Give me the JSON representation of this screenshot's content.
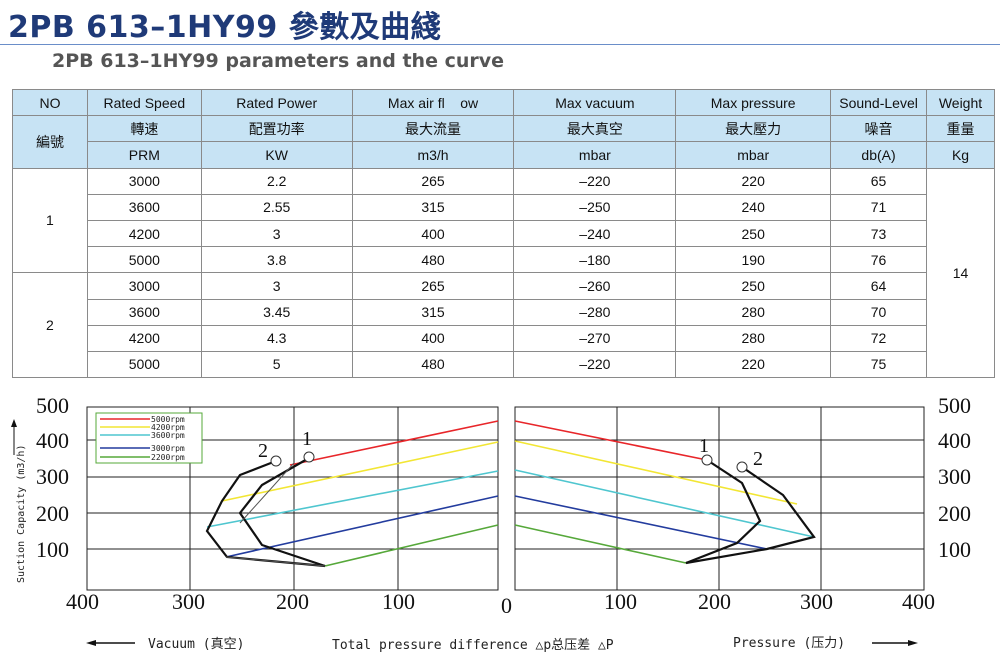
{
  "title": "2PB 613–1HY99 參數及曲綫",
  "subtitle": "2PB 613–1HY99 parameters and the curve",
  "table": {
    "header_en": [
      "NO",
      "Rated Speed",
      "Rated Power",
      "Max air fl    ow",
      "Max vacuum",
      "Max pressure",
      "Sound-Level",
      "Weight"
    ],
    "header_cn": [
      "編號",
      "轉速",
      "配置功率",
      "最大流量",
      "最大真空",
      "最大壓力",
      "噪音",
      "重量"
    ],
    "units": [
      "PRM",
      "KW",
      "m3/h",
      "mbar",
      "mbar",
      "db(A)",
      "Kg"
    ],
    "weight": "14",
    "groups": [
      {
        "no": "1",
        "rows": [
          [
            "3000",
            "2.2",
            "265",
            "–220",
            "220",
            "65"
          ],
          [
            "3600",
            "2.55",
            "315",
            "–250",
            "240",
            "71"
          ],
          [
            "4200",
            "3",
            "400",
            "–240",
            "250",
            "73"
          ],
          [
            "5000",
            "3.8",
            "480",
            "–180",
            "190",
            "76"
          ]
        ]
      },
      {
        "no": "2",
        "rows": [
          [
            "3000",
            "3",
            "265",
            "–260",
            "250",
            "64"
          ],
          [
            "3600",
            "3.45",
            "315",
            "–280",
            "280",
            "70"
          ],
          [
            "4200",
            "4.3",
            "400",
            "–270",
            "280",
            "72"
          ],
          [
            "5000",
            "5",
            "480",
            "–220",
            "220",
            "75"
          ]
        ]
      }
    ]
  },
  "chart": {
    "y_ticks": [
      "500",
      "400",
      "300",
      "200",
      "100"
    ],
    "x_ticks_left": [
      "400",
      "300",
      "200",
      "100"
    ],
    "x_ticks_right": [
      "100",
      "200",
      "300",
      "400"
    ],
    "x_zero": "0",
    "ylabel": "Suction Capacity (m3/h)",
    "xlabel": "Total pressure difference △p总压差 △P",
    "vacuum_label": "Vacuum (真空)",
    "pressure_label": "Pressure (压力)",
    "curve_labels": [
      "1",
      "2"
    ],
    "legend": [
      {
        "label": "5000rpm",
        "color": "#e8262a"
      },
      {
        "label": "4200rpm",
        "color": "#f2e634"
      },
      {
        "label": "3600rpm",
        "color": "#4fc6cf"
      },
      {
        "label": "3000rpm",
        "color": "#233c9e"
      },
      {
        "label": "2200rpm",
        "color": "#56a83a"
      }
    ]
  }
}
